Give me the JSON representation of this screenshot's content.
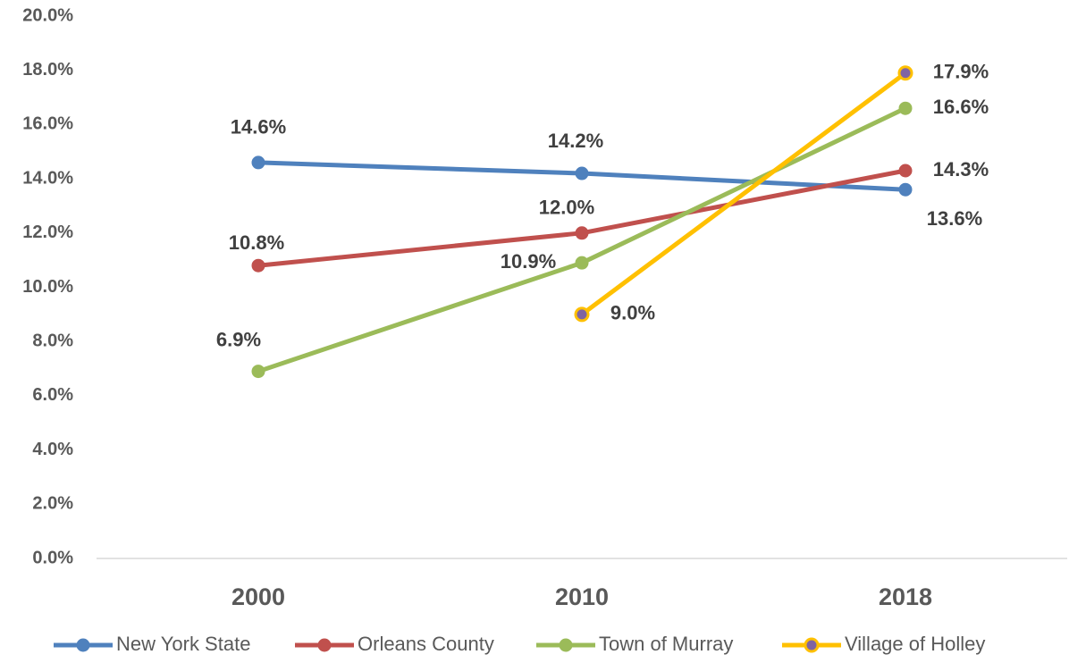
{
  "chart_data": {
    "type": "line",
    "categories": [
      "2000",
      "2010",
      "2018"
    ],
    "series": [
      {
        "name": "New York State",
        "color": "#4f81bd",
        "values": [
          14.6,
          14.2,
          13.6
        ],
        "value_labels": [
          "14.6%",
          "14.2%",
          "13.6%"
        ]
      },
      {
        "name": "Orleans County",
        "color": "#c0504d",
        "values": [
          10.8,
          12.0,
          14.3
        ],
        "value_labels": [
          "10.8%",
          "12.0%",
          "14.3%"
        ]
      },
      {
        "name": "Town of Murray",
        "color": "#9bbb59",
        "values": [
          6.9,
          10.9,
          16.6
        ],
        "value_labels": [
          "6.9%",
          "10.9%",
          "16.6%"
        ]
      },
      {
        "name": "Village of Holley",
        "color": "#ffc000",
        "marker_color": "#8064a2",
        "values": [
          null,
          9.0,
          17.9
        ],
        "value_labels": [
          null,
          "9.0%",
          "17.9%"
        ]
      }
    ],
    "ylim": [
      0,
      20
    ],
    "yticks": [
      {
        "value": 0,
        "label": "0.0%"
      },
      {
        "value": 2,
        "label": "2.0%"
      },
      {
        "value": 4,
        "label": "4.0%"
      },
      {
        "value": 6,
        "label": "6.0%"
      },
      {
        "value": 8,
        "label": "8.0%"
      },
      {
        "value": 10,
        "label": "10.0%"
      },
      {
        "value": 12,
        "label": "12.0%"
      },
      {
        "value": 14,
        "label": "14.0%"
      },
      {
        "value": 16,
        "label": "16.0%"
      },
      {
        "value": 18,
        "label": "18.0%"
      },
      {
        "value": 20,
        "label": "20.0%"
      }
    ],
    "grid": false,
    "legend": "bottom"
  }
}
